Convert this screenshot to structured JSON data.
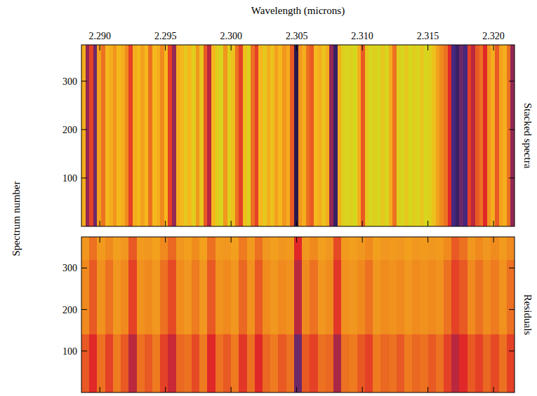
{
  "chart_data": [
    {
      "type": "heatmap",
      "title": "Stacked spectra",
      "xlabel": "Wavelength (microns)",
      "ylabel": "Spectrum number",
      "xlim": [
        2.2886,
        2.3216
      ],
      "ylim": [
        0,
        375
      ],
      "xticks": [
        {
          "value": 2.29,
          "label": "2.290"
        },
        {
          "value": 2.295,
          "label": "2.295"
        },
        {
          "value": 2.3,
          "label": "2.300"
        },
        {
          "value": 2.305,
          "label": "2.305"
        },
        {
          "value": 2.31,
          "label": "2.310"
        },
        {
          "value": 2.315,
          "label": "2.315"
        },
        {
          "value": 2.32,
          "label": "2.320"
        }
      ],
      "yticks": [
        100,
        200,
        300
      ],
      "zlim": [
        0,
        1
      ],
      "x_edges": [
        2.2886,
        2.2889,
        2.2892,
        2.2895,
        2.2898,
        2.2901,
        2.2904,
        2.2907,
        2.291,
        2.2913,
        2.2916,
        2.2919,
        2.2922,
        2.2925,
        2.2928,
        2.2931,
        2.2934,
        2.2937,
        2.294,
        2.2943,
        2.2946,
        2.2949,
        2.2952,
        2.2955,
        2.2958,
        2.2961,
        2.2964,
        2.2967,
        2.297,
        2.2973,
        2.2976,
        2.2979,
        2.2982,
        2.2985,
        2.2988,
        2.2991,
        2.2994,
        2.2997,
        2.3,
        2.3003,
        2.3006,
        2.3009,
        2.3012,
        2.3015,
        2.3018,
        2.3021,
        2.3024,
        2.3027,
        2.303,
        2.3033,
        2.3036,
        2.3039,
        2.3042,
        2.3045,
        2.3048,
        2.3051,
        2.3054,
        2.3057,
        2.306,
        2.3063,
        2.3066,
        2.3069,
        2.3072,
        2.3075,
        2.3078,
        2.3081,
        2.3084,
        2.3087,
        2.309,
        2.3093,
        2.3096,
        2.3099,
        2.3102,
        2.3105,
        2.3108,
        2.3111,
        2.3114,
        2.3117,
        2.312,
        2.3123,
        2.3126,
        2.3129,
        2.3132,
        2.3135,
        2.3138,
        2.3141,
        2.3144,
        2.3147,
        2.315,
        2.3153,
        2.3156,
        2.3159,
        2.3162,
        2.3165,
        2.3168,
        2.3171,
        2.3174,
        2.3177,
        2.318,
        2.3183,
        2.3186,
        2.3189,
        2.3192,
        2.3195,
        2.3198,
        2.3201,
        2.3204,
        2.3207,
        2.321,
        2.3213,
        2.3216
      ],
      "y_edges": [
        0,
        375
      ],
      "cells": [
        [
          0.8,
          0.35,
          0.5,
          0.3,
          0.75,
          0.6,
          0.85,
          0.8,
          0.7,
          0.85,
          0.8,
          0.65,
          0.5,
          0.8,
          0.85,
          0.75,
          0.85,
          0.6,
          0.85,
          0.8,
          0.65,
          0.85,
          0.5,
          0.35,
          0.8,
          0.85,
          0.9,
          0.85,
          0.92,
          0.7,
          0.9,
          0.55,
          0.4,
          0.85,
          0.92,
          0.95,
          0.7,
          0.93,
          0.88,
          0.6,
          0.5,
          0.88,
          0.93,
          0.6,
          0.5,
          0.85,
          0.9,
          0.8,
          0.88,
          0.75,
          0.85,
          0.7,
          0.8,
          0.55,
          0.15,
          0.7,
          0.8,
          0.6,
          0.55,
          0.85,
          0.8,
          0.88,
          0.8,
          0.35,
          0.2,
          0.8,
          0.93,
          0.95,
          0.93,
          0.96,
          0.8,
          0.55,
          0.9,
          0.95,
          0.93,
          0.96,
          0.9,
          0.95,
          0.8,
          0.6,
          0.93,
          0.95,
          0.9,
          0.96,
          0.92,
          0.95,
          0.9,
          0.95,
          0.93,
          0.88,
          0.75,
          0.65,
          0.6,
          0.45,
          0.25,
          0.2,
          0.3,
          0.25,
          0.5,
          0.4,
          0.55,
          0.6,
          0.45,
          0.7,
          0.8,
          0.55,
          0.75,
          0.8,
          0.6,
          0.35
        ]
      ]
    },
    {
      "type": "heatmap",
      "title": "Residuals",
      "xlim": [
        2.2886,
        2.3216
      ],
      "ylim": [
        0,
        375
      ],
      "xticks": [
        2.29,
        2.295,
        2.3,
        2.305,
        2.31,
        2.315,
        2.32
      ],
      "yticks": [
        100,
        200,
        300
      ],
      "tick_labels": "y",
      "zlim": [
        0,
        1
      ],
      "x_edges": [
        2.2886,
        2.2892,
        2.2898,
        2.2904,
        2.291,
        2.2916,
        2.2922,
        2.2928,
        2.2934,
        2.294,
        2.2946,
        2.2952,
        2.2958,
        2.2964,
        2.297,
        2.2976,
        2.2982,
        2.2988,
        2.2994,
        2.3,
        2.3006,
        2.3012,
        2.3018,
        2.3024,
        2.303,
        2.3036,
        2.3042,
        2.3048,
        2.3054,
        2.306,
        2.3066,
        2.3072,
        2.3078,
        2.3084,
        2.309,
        2.3096,
        2.3102,
        2.3108,
        2.3114,
        2.312,
        2.3126,
        2.3132,
        2.3138,
        2.3144,
        2.315,
        2.3156,
        2.3162,
        2.3168,
        2.3174,
        2.318,
        2.3186,
        2.3192,
        2.3198,
        2.3204,
        2.321,
        2.3216
      ],
      "y_edges": [
        0,
        140,
        320,
        375
      ],
      "cells": [
        [
          0.55,
          0.45,
          0.6,
          0.5,
          0.62,
          0.55,
          0.4,
          0.6,
          0.55,
          0.62,
          0.5,
          0.42,
          0.58,
          0.6,
          0.52,
          0.62,
          0.45,
          0.6,
          0.55,
          0.62,
          0.48,
          0.6,
          0.45,
          0.58,
          0.62,
          0.55,
          0.6,
          0.3,
          0.55,
          0.5,
          0.6,
          0.58,
          0.38,
          0.6,
          0.62,
          0.55,
          0.5,
          0.62,
          0.58,
          0.6,
          0.55,
          0.62,
          0.58,
          0.6,
          0.55,
          0.6,
          0.5,
          0.4,
          0.45,
          0.55,
          0.5,
          0.58,
          0.52,
          0.6,
          0.5
        ],
        [
          0.65,
          0.55,
          0.68,
          0.6,
          0.7,
          0.65,
          0.5,
          0.68,
          0.65,
          0.7,
          0.6,
          0.52,
          0.66,
          0.7,
          0.62,
          0.7,
          0.55,
          0.68,
          0.65,
          0.7,
          0.58,
          0.68,
          0.55,
          0.66,
          0.7,
          0.65,
          0.68,
          0.4,
          0.65,
          0.6,
          0.7,
          0.66,
          0.48,
          0.68,
          0.7,
          0.65,
          0.6,
          0.7,
          0.66,
          0.68,
          0.65,
          0.7,
          0.66,
          0.68,
          0.65,
          0.68,
          0.6,
          0.5,
          0.55,
          0.65,
          0.6,
          0.66,
          0.62,
          0.68,
          0.6
        ],
        [
          0.7,
          0.6,
          0.72,
          0.65,
          0.74,
          0.7,
          0.55,
          0.72,
          0.7,
          0.75,
          0.65,
          0.58,
          0.7,
          0.74,
          0.66,
          0.75,
          0.6,
          0.72,
          0.7,
          0.74,
          0.62,
          0.72,
          0.6,
          0.7,
          0.74,
          0.7,
          0.72,
          0.45,
          0.7,
          0.65,
          0.74,
          0.7,
          0.52,
          0.72,
          0.74,
          0.7,
          0.65,
          0.74,
          0.7,
          0.72,
          0.7,
          0.74,
          0.7,
          0.72,
          0.7,
          0.72,
          0.65,
          0.55,
          0.6,
          0.7,
          0.65,
          0.7,
          0.66,
          0.72,
          0.65
        ]
      ]
    }
  ]
}
